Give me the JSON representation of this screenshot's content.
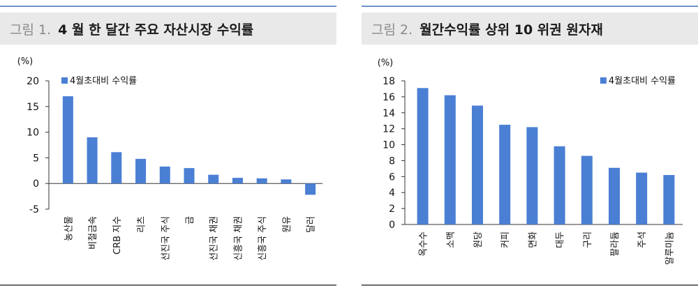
{
  "figures": [
    {
      "number": "그림 1.",
      "title": "4 월 한 달간 주요 자산시장 수익률",
      "unit": "(%)",
      "chart_data": {
        "type": "bar",
        "categories": [
          "농산물",
          "비철금속",
          "CRB 지수",
          "리츠",
          "선진국 주식",
          "금",
          "선진국 채권",
          "신흥국 채권",
          "신흥국 주식",
          "원유",
          "달러"
        ],
        "series": [
          {
            "name": "4월초대비 수익률",
            "values": [
              17.0,
              9.0,
              6.1,
              4.8,
              3.3,
              3.0,
              1.7,
              1.1,
              1.0,
              0.8,
              -2.2
            ]
          }
        ],
        "ylim": [
          -5,
          20
        ],
        "yticks": [
          -5,
          0,
          5,
          10,
          15,
          20
        ],
        "ytick_labels": [
          "-5",
          "0",
          "5",
          "10",
          "15",
          "20"
        ],
        "legend_position": "top-left",
        "color": "#4a7fd4"
      }
    },
    {
      "number": "그림 2.",
      "title": "월간수익률 상위 10 위권 원자재",
      "unit": "(%)",
      "chart_data": {
        "type": "bar",
        "categories": [
          "옥수수",
          "소맥",
          "원당",
          "커피",
          "면화",
          "대두",
          "구리",
          "팔라듐",
          "주석",
          "알루미늄"
        ],
        "series": [
          {
            "name": "4월초대비 수익률",
            "values": [
              17.1,
              16.2,
              14.9,
              12.5,
              12.2,
              9.8,
              8.6,
              7.1,
              6.5,
              6.2
            ]
          }
        ],
        "ylim": [
          0,
          18
        ],
        "yticks": [
          0,
          2,
          4,
          6,
          8,
          10,
          12,
          14,
          16,
          18
        ],
        "ytick_labels": [
          "0",
          "2",
          "4",
          "6",
          "8",
          "10",
          "12",
          "14",
          "16",
          "18"
        ],
        "legend_position": "top-right",
        "color": "#4a7fd4"
      }
    }
  ]
}
